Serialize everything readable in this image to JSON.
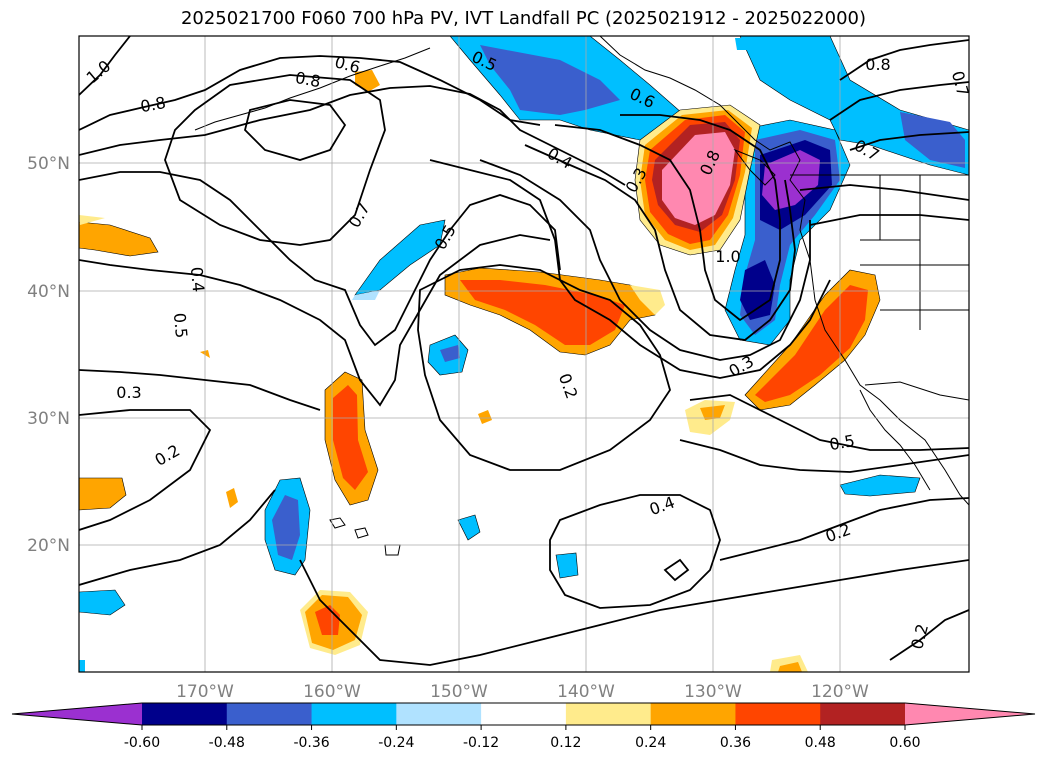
{
  "title": "2025021700 F060 700 hPa PV, IVT Landfall PC (2025021912 - 2025022000)",
  "map": {
    "lat_labels": [
      "50°N",
      "40°N",
      "30°N",
      "20°N"
    ],
    "lon_labels": [
      "170°W",
      "160°W",
      "150°W",
      "140°W",
      "130°W",
      "120°W"
    ],
    "grid_color": "#aaaaaa",
    "label_color": "#808080"
  },
  "contour_labels": [
    "1.0",
    "0.8",
    "0.6",
    "0.5",
    "0.6",
    "0.8",
    "0.7",
    "0.8",
    "0.4",
    "0.3",
    "0.8",
    "0.7",
    "0.7",
    "0.5",
    "0.4",
    "0.5",
    "1.0",
    "0.3",
    "0.2",
    "0.3",
    "0.2",
    "0.4",
    "0.5",
    "0.2",
    "0.2"
  ],
  "colorbar": {
    "colors": [
      "#9b30d0",
      "#00008b",
      "#3a5fcd",
      "#00bfff",
      "#b0e2ff",
      "#ffffff",
      "#ffeb8c",
      "#ffa500",
      "#ff4500",
      "#b22222",
      "#ff88b0"
    ],
    "ticks": [
      "-0.60",
      "-0.48",
      "-0.36",
      "-0.24",
      "-0.12",
      "0.12",
      "0.24",
      "0.36",
      "0.48",
      "0.60"
    ]
  }
}
